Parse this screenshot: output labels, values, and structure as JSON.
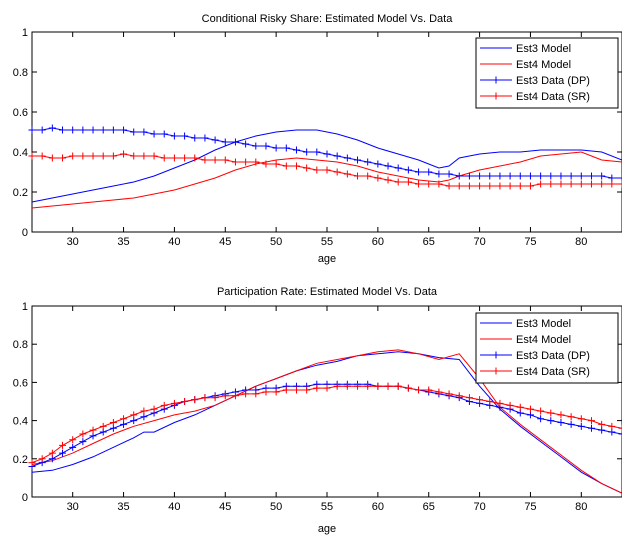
{
  "chart_data": [
    {
      "type": "line",
      "title": "Conditional Risky Share: Estimated Model Vs. Data",
      "xlabel": "age",
      "ylabel": "",
      "xlim": [
        26,
        84
      ],
      "ylim": [
        0,
        1
      ],
      "xticks": [
        30,
        35,
        40,
        45,
        50,
        55,
        60,
        65,
        70,
        75,
        80
      ],
      "yticks": [
        0,
        0.2,
        0.4,
        0.6,
        0.8,
        1
      ],
      "ytick_labels": [
        "0",
        "0.2",
        "0.4",
        "0.6",
        "0.8",
        "1"
      ],
      "grid": false,
      "legend_position": "top-right",
      "series": [
        {
          "name": "Est3 Model",
          "color": "#0000ff",
          "marker": "none",
          "x": [
            26,
            28,
            30,
            32,
            34,
            36,
            38,
            40,
            42,
            44,
            46,
            48,
            50,
            52,
            54,
            56,
            58,
            60,
            62,
            64,
            65,
            66,
            67,
            68,
            69,
            70,
            72,
            74,
            76,
            78,
            80,
            82,
            84
          ],
          "y": [
            0.15,
            0.17,
            0.19,
            0.21,
            0.23,
            0.25,
            0.28,
            0.32,
            0.36,
            0.41,
            0.45,
            0.48,
            0.5,
            0.51,
            0.51,
            0.49,
            0.46,
            0.42,
            0.39,
            0.36,
            0.34,
            0.32,
            0.33,
            0.37,
            0.38,
            0.39,
            0.4,
            0.4,
            0.41,
            0.41,
            0.41,
            0.4,
            0.36
          ]
        },
        {
          "name": "Est4 Model",
          "color": "#ff0000",
          "marker": "none",
          "x": [
            26,
            28,
            30,
            32,
            34,
            36,
            38,
            40,
            42,
            44,
            46,
            48,
            50,
            52,
            54,
            56,
            58,
            60,
            62,
            64,
            66,
            67,
            68,
            70,
            72,
            74,
            76,
            78,
            80,
            81,
            82,
            84
          ],
          "y": [
            0.12,
            0.13,
            0.14,
            0.15,
            0.16,
            0.17,
            0.19,
            0.21,
            0.24,
            0.27,
            0.31,
            0.34,
            0.36,
            0.37,
            0.36,
            0.35,
            0.33,
            0.3,
            0.28,
            0.26,
            0.25,
            0.26,
            0.28,
            0.31,
            0.33,
            0.35,
            0.38,
            0.39,
            0.4,
            0.38,
            0.36,
            0.35
          ]
        },
        {
          "name": "Est3 Data (DP)",
          "color": "#0000ff",
          "marker": "+",
          "x": [
            26,
            27,
            28,
            29,
            30,
            31,
            32,
            33,
            34,
            35,
            36,
            37,
            38,
            39,
            40,
            41,
            42,
            43,
            44,
            45,
            46,
            47,
            48,
            49,
            50,
            51,
            52,
            53,
            54,
            55,
            56,
            57,
            58,
            59,
            60,
            61,
            62,
            63,
            64,
            65,
            66,
            67,
            68,
            69,
            70,
            71,
            72,
            73,
            74,
            75,
            76,
            77,
            78,
            79,
            80,
            81,
            82,
            83,
            84
          ],
          "y": [
            0.51,
            0.51,
            0.52,
            0.51,
            0.51,
            0.51,
            0.51,
            0.51,
            0.51,
            0.51,
            0.5,
            0.5,
            0.49,
            0.49,
            0.48,
            0.48,
            0.47,
            0.47,
            0.46,
            0.45,
            0.45,
            0.44,
            0.43,
            0.43,
            0.42,
            0.42,
            0.41,
            0.4,
            0.4,
            0.39,
            0.38,
            0.37,
            0.36,
            0.35,
            0.34,
            0.33,
            0.32,
            0.31,
            0.3,
            0.3,
            0.29,
            0.29,
            0.28,
            0.28,
            0.28,
            0.28,
            0.28,
            0.28,
            0.28,
            0.28,
            0.28,
            0.28,
            0.28,
            0.28,
            0.28,
            0.28,
            0.28,
            0.27,
            0.27
          ]
        },
        {
          "name": "Est4 Data (SR)",
          "color": "#ff0000",
          "marker": "+",
          "x": [
            26,
            27,
            28,
            29,
            30,
            31,
            32,
            33,
            34,
            35,
            36,
            37,
            38,
            39,
            40,
            41,
            42,
            43,
            44,
            45,
            46,
            47,
            48,
            49,
            50,
            51,
            52,
            53,
            54,
            55,
            56,
            57,
            58,
            59,
            60,
            61,
            62,
            63,
            64,
            65,
            66,
            67,
            68,
            69,
            70,
            71,
            72,
            73,
            74,
            75,
            76,
            77,
            78,
            79,
            80,
            81,
            82,
            83,
            84
          ],
          "y": [
            0.38,
            0.38,
            0.37,
            0.37,
            0.38,
            0.38,
            0.38,
            0.38,
            0.38,
            0.39,
            0.38,
            0.38,
            0.38,
            0.37,
            0.37,
            0.37,
            0.37,
            0.36,
            0.36,
            0.36,
            0.35,
            0.35,
            0.35,
            0.34,
            0.34,
            0.33,
            0.33,
            0.32,
            0.31,
            0.31,
            0.3,
            0.29,
            0.28,
            0.28,
            0.27,
            0.26,
            0.25,
            0.25,
            0.24,
            0.24,
            0.24,
            0.23,
            0.23,
            0.23,
            0.23,
            0.23,
            0.23,
            0.23,
            0.23,
            0.23,
            0.24,
            0.24,
            0.24,
            0.24,
            0.24,
            0.24,
            0.24,
            0.24,
            0.24
          ]
        }
      ]
    },
    {
      "type": "line",
      "title": "Participation Rate: Estimated Model Vs. Data",
      "xlabel": "age",
      "ylabel": "",
      "xlim": [
        26,
        84
      ],
      "ylim": [
        0,
        1
      ],
      "xticks": [
        30,
        35,
        40,
        45,
        50,
        55,
        60,
        65,
        70,
        75,
        80
      ],
      "yticks": [
        0,
        0.2,
        0.4,
        0.6,
        0.8,
        1
      ],
      "ytick_labels": [
        "0",
        "0.2",
        "0.4",
        "0.6",
        "0.8",
        "1"
      ],
      "grid": false,
      "legend_position": "top-right",
      "series": [
        {
          "name": "Est3 Model",
          "color": "#0000ff",
          "marker": "none",
          "x": [
            26,
            28,
            30,
            32,
            34,
            36,
            37,
            38,
            40,
            42,
            44,
            46,
            48,
            50,
            52,
            54,
            56,
            58,
            60,
            62,
            64,
            66,
            68,
            70,
            72,
            74,
            76,
            78,
            80,
            82,
            84
          ],
          "y": [
            0.13,
            0.14,
            0.17,
            0.21,
            0.26,
            0.31,
            0.34,
            0.34,
            0.39,
            0.43,
            0.48,
            0.53,
            0.58,
            0.62,
            0.66,
            0.69,
            0.71,
            0.74,
            0.75,
            0.76,
            0.75,
            0.73,
            0.72,
            0.58,
            0.46,
            0.37,
            0.29,
            0.21,
            0.13,
            0.07,
            0.02
          ]
        },
        {
          "name": "Est4 Model",
          "color": "#ff0000",
          "marker": "none",
          "x": [
            26,
            28,
            30,
            32,
            34,
            36,
            38,
            40,
            42,
            44,
            46,
            48,
            50,
            52,
            54,
            56,
            58,
            60,
            62,
            64,
            66,
            68,
            70,
            72,
            74,
            76,
            78,
            80,
            82,
            84
          ],
          "y": [
            0.17,
            0.19,
            0.23,
            0.28,
            0.33,
            0.37,
            0.4,
            0.43,
            0.45,
            0.48,
            0.53,
            0.58,
            0.62,
            0.66,
            0.7,
            0.72,
            0.74,
            0.76,
            0.77,
            0.75,
            0.72,
            0.75,
            0.62,
            0.47,
            0.38,
            0.3,
            0.22,
            0.14,
            0.07,
            0.02
          ]
        },
        {
          "name": "Est3 Data (DP)",
          "color": "#0000ff",
          "marker": "+",
          "x": [
            26,
            27,
            28,
            29,
            30,
            31,
            32,
            33,
            34,
            35,
            36,
            37,
            38,
            39,
            40,
            41,
            42,
            43,
            44,
            45,
            46,
            47,
            48,
            49,
            50,
            51,
            52,
            53,
            54,
            55,
            56,
            57,
            58,
            59,
            60,
            61,
            62,
            63,
            64,
            65,
            66,
            67,
            68,
            69,
            70,
            71,
            72,
            73,
            74,
            75,
            76,
            77,
            78,
            79,
            80,
            81,
            82,
            83,
            84
          ],
          "y": [
            0.16,
            0.18,
            0.2,
            0.23,
            0.26,
            0.29,
            0.32,
            0.34,
            0.36,
            0.38,
            0.4,
            0.42,
            0.44,
            0.46,
            0.48,
            0.5,
            0.51,
            0.52,
            0.53,
            0.54,
            0.55,
            0.56,
            0.56,
            0.57,
            0.57,
            0.58,
            0.58,
            0.58,
            0.59,
            0.59,
            0.59,
            0.59,
            0.59,
            0.59,
            0.58,
            0.58,
            0.58,
            0.57,
            0.56,
            0.55,
            0.54,
            0.53,
            0.52,
            0.5,
            0.49,
            0.48,
            0.47,
            0.46,
            0.44,
            0.43,
            0.41,
            0.4,
            0.39,
            0.38,
            0.37,
            0.36,
            0.35,
            0.34,
            0.33
          ]
        },
        {
          "name": "Est4 Data (SR)",
          "color": "#ff0000",
          "marker": "+",
          "x": [
            26,
            27,
            28,
            29,
            30,
            31,
            32,
            33,
            34,
            35,
            36,
            37,
            38,
            39,
            40,
            41,
            42,
            43,
            44,
            45,
            46,
            47,
            48,
            49,
            50,
            51,
            52,
            53,
            54,
            55,
            56,
            57,
            58,
            59,
            60,
            61,
            62,
            63,
            64,
            65,
            66,
            67,
            68,
            69,
            70,
            71,
            72,
            73,
            74,
            75,
            76,
            77,
            78,
            79,
            80,
            81,
            82,
            83,
            84
          ],
          "y": [
            0.18,
            0.2,
            0.23,
            0.27,
            0.3,
            0.33,
            0.35,
            0.37,
            0.39,
            0.41,
            0.43,
            0.45,
            0.46,
            0.48,
            0.49,
            0.5,
            0.51,
            0.52,
            0.52,
            0.53,
            0.53,
            0.54,
            0.54,
            0.55,
            0.55,
            0.56,
            0.56,
            0.56,
            0.57,
            0.57,
            0.58,
            0.58,
            0.58,
            0.58,
            0.58,
            0.58,
            0.58,
            0.57,
            0.56,
            0.56,
            0.55,
            0.54,
            0.53,
            0.52,
            0.51,
            0.5,
            0.49,
            0.48,
            0.47,
            0.46,
            0.45,
            0.44,
            0.43,
            0.42,
            0.41,
            0.4,
            0.38,
            0.37,
            0.36
          ]
        }
      ]
    }
  ]
}
